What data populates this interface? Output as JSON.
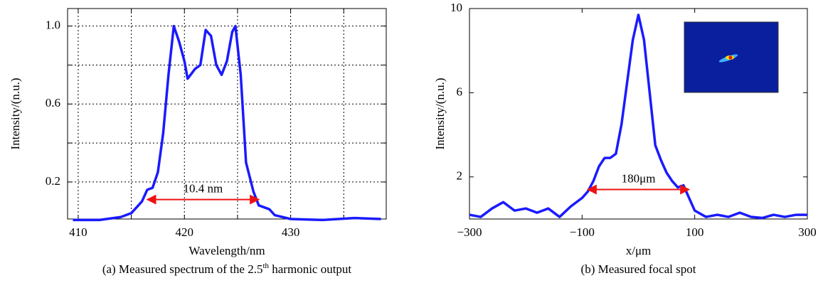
{
  "chart_data": [
    {
      "type": "line",
      "caption": {
        "text": "(a) Measured spectrum of the 2.5",
        "sup": "th",
        "rest": " harmonic output"
      },
      "xlabel": "Wavelength/nm",
      "ylabel": "Intensity/(n.u.)",
      "xlim": [
        409,
        439
      ],
      "ylim": [
        0.01,
        1.09
      ],
      "xticks": [
        410,
        420,
        430
      ],
      "yticks": [
        0.2,
        0.6,
        {
          "value": 1,
          "label": "1.0"
        }
      ],
      "xminor": [
        415,
        425,
        435
      ],
      "yminor": [
        0.4,
        0.8
      ],
      "grid": true,
      "x": [
        409.5,
        412,
        414,
        415,
        416,
        416.5,
        417,
        417.5,
        418,
        418.5,
        419,
        419.5,
        420,
        420.3,
        421,
        421.5,
        422,
        422.5,
        423,
        423.5,
        424,
        424.5,
        424.8,
        425.3,
        425.8,
        426.5,
        427,
        428,
        428.5,
        430,
        433,
        436,
        438.5
      ],
      "series": [
        {
          "color": "#1a1aff",
          "values": [
            0.005,
            0.005,
            0.02,
            0.04,
            0.1,
            0.16,
            0.17,
            0.25,
            0.45,
            0.75,
            1.0,
            0.92,
            0.82,
            0.73,
            0.78,
            0.8,
            0.98,
            0.95,
            0.8,
            0.75,
            0.82,
            0.97,
            1.0,
            0.75,
            0.3,
            0.15,
            0.08,
            0.06,
            0.03,
            0.01,
            0.005,
            0.015,
            0.01
          ]
        }
      ],
      "annotation": {
        "text": "10.4 nm",
        "from": 416.5,
        "to": 427,
        "y": 0.11,
        "color": "#ee1111"
      }
    },
    {
      "type": "line",
      "caption": {
        "text": "(b) Measured focal spot"
      },
      "xlabel": "x/μm",
      "ylabel": "Intensity/(n.u.)",
      "xlim": [
        -300,
        300
      ],
      "ylim": [
        0,
        10
      ],
      "xticks": [
        {
          "value": -300,
          "label": "−300"
        },
        {
          "value": -100,
          "label": "−100"
        },
        100,
        300
      ],
      "yticks": [
        2,
        6,
        10
      ],
      "grid": false,
      "x": [
        -300,
        -280,
        -260,
        -240,
        -220,
        -200,
        -180,
        -160,
        -140,
        -120,
        -100,
        -90,
        -80,
        -70,
        -60,
        -50,
        -40,
        -30,
        -20,
        -10,
        0,
        10,
        20,
        30,
        40,
        50,
        60,
        70,
        80,
        90,
        100,
        120,
        140,
        160,
        180,
        200,
        220,
        240,
        260,
        280,
        300
      ],
      "series": [
        {
          "color": "#1a1aff",
          "values": [
            0.2,
            0.1,
            0.5,
            0.8,
            0.4,
            0.5,
            0.3,
            0.5,
            0.1,
            0.6,
            1.0,
            1.3,
            1.8,
            2.5,
            2.9,
            2.9,
            3.1,
            4.5,
            6.5,
            8.5,
            9.7,
            8.5,
            6.0,
            3.5,
            2.8,
            2.2,
            1.8,
            1.5,
            1.6,
            1.0,
            0.4,
            0.1,
            0.2,
            0.1,
            0.3,
            0.1,
            0.05,
            0.2,
            0.1,
            0.2,
            0.2
          ]
        }
      ],
      "annotation": {
        "text": "180μm",
        "from": -90,
        "to": 90,
        "y": 1.4,
        "color": "#ee1111"
      }
    }
  ]
}
